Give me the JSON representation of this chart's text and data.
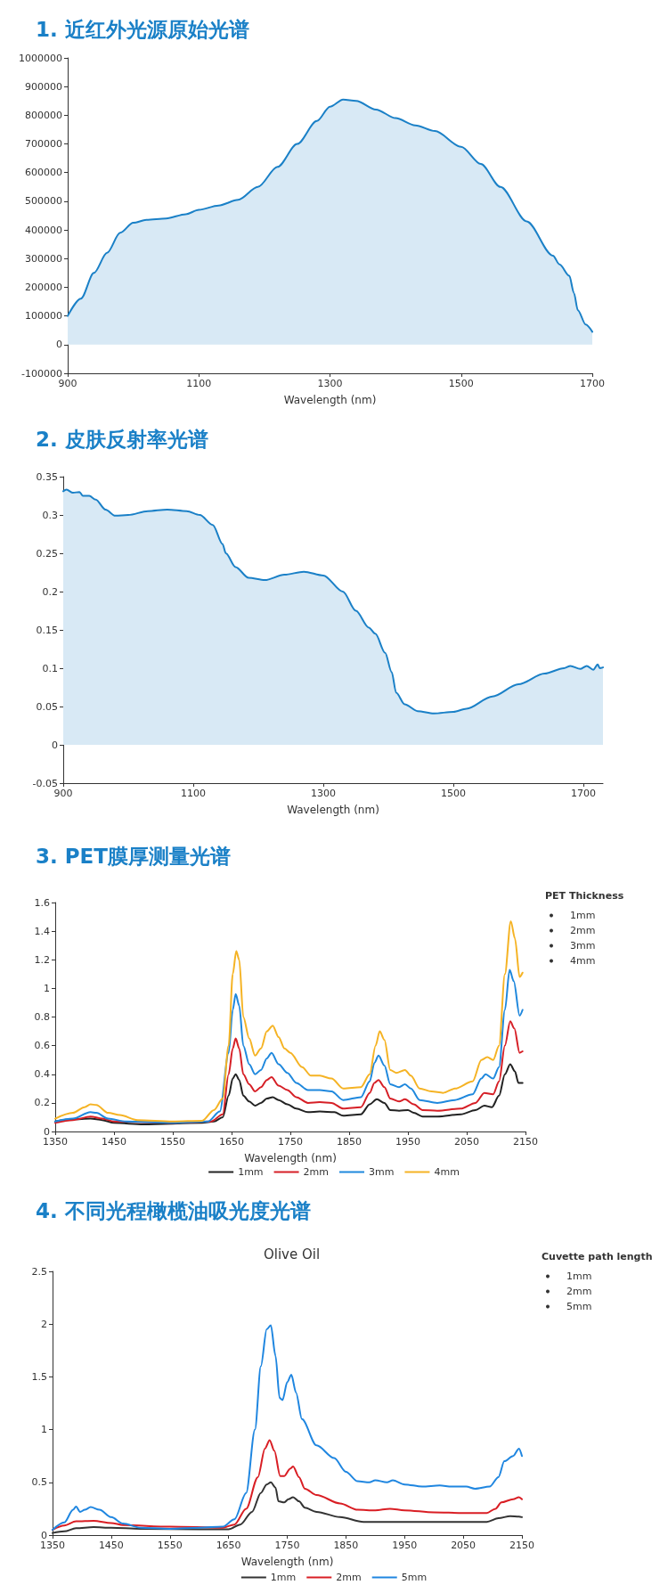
{
  "chart_data": [
    {
      "type": "area",
      "title": "1. 近红外光源原始光谱",
      "xlabel": "Wavelength (nm)",
      "xlim": [
        900,
        1700
      ],
      "xticks": [
        900,
        1100,
        1300,
        1500,
        1700
      ],
      "ylim": [
        -100000,
        1000000
      ],
      "yticks": [
        -100000,
        0,
        100000,
        200000,
        300000,
        400000,
        500000,
        600000,
        700000,
        800000,
        900000,
        1000000
      ],
      "grid": false,
      "legend": false,
      "marker": "none",
      "series": [
        {
          "color": "#1a80c7",
          "x": [
            900,
            920,
            940,
            960,
            980,
            1000,
            1020,
            1050,
            1080,
            1100,
            1130,
            1160,
            1190,
            1220,
            1250,
            1280,
            1300,
            1320,
            1340,
            1370,
            1400,
            1430,
            1460,
            1500,
            1530,
            1560,
            1600,
            1640,
            1650,
            1665,
            1672,
            1678,
            1690,
            1700
          ],
          "values": [
            100000,
            160000,
            250000,
            320000,
            390000,
            425000,
            435000,
            440000,
            455000,
            470000,
            485000,
            505000,
            550000,
            620000,
            700000,
            780000,
            830000,
            855000,
            850000,
            820000,
            790000,
            765000,
            745000,
            690000,
            630000,
            550000,
            430000,
            310000,
            280000,
            240000,
            180000,
            120000,
            70000,
            45000
          ]
        }
      ]
    },
    {
      "type": "area",
      "title": "2. 皮肤反射率光谱",
      "xlabel": "Wavelength (nm)",
      "xlim": [
        900,
        1730
      ],
      "xticks": [
        900,
        1100,
        1300,
        1500,
        1700
      ],
      "ylim": [
        -0.05,
        0.35
      ],
      "yticks": [
        -0.05,
        0,
        0.05,
        0.1,
        0.15,
        0.2,
        0.25,
        0.3,
        0.35
      ],
      "grid": false,
      "legend": false,
      "marker": "none",
      "series": [
        {
          "color": "#1a80c7",
          "x": [
            900,
            905,
            915,
            925,
            930,
            940,
            950,
            965,
            980,
            1000,
            1030,
            1060,
            1090,
            1110,
            1130,
            1145,
            1150,
            1165,
            1185,
            1210,
            1240,
            1270,
            1300,
            1330,
            1350,
            1370,
            1380,
            1395,
            1405,
            1412,
            1425,
            1445,
            1470,
            1500,
            1520,
            1560,
            1600,
            1640,
            1670,
            1680,
            1695,
            1705,
            1715,
            1722,
            1725,
            1730
          ],
          "values": [
            0.331,
            0.333,
            0.329,
            0.33,
            0.325,
            0.325,
            0.32,
            0.307,
            0.299,
            0.3,
            0.305,
            0.307,
            0.305,
            0.3,
            0.287,
            0.262,
            0.25,
            0.232,
            0.218,
            0.215,
            0.222,
            0.226,
            0.221,
            0.2,
            0.175,
            0.153,
            0.145,
            0.12,
            0.095,
            0.068,
            0.053,
            0.044,
            0.041,
            0.043,
            0.047,
            0.063,
            0.079,
            0.093,
            0.1,
            0.103,
            0.099,
            0.103,
            0.098,
            0.105,
            0.1,
            0.101
          ]
        }
      ]
    },
    {
      "type": "line",
      "title": "3. PET膜厚测量光谱",
      "xlabel": "Wavelength (nm)",
      "legend_title": "PET Thickness",
      "xlim": [
        1350,
        2150
      ],
      "xticks": [
        1350,
        1450,
        1550,
        1650,
        1750,
        1850,
        1950,
        2050,
        2150
      ],
      "ylim": [
        0,
        1.6
      ],
      "yticks": [
        0,
        0.2,
        0.4,
        0.6,
        0.8,
        1,
        1.2,
        1.4,
        1.6
      ],
      "grid": false,
      "legend": "bottom",
      "marker": "none",
      "series": [
        {
          "name": "1mm",
          "color": "#222222",
          "x": [
            1350,
            1380,
            1410,
            1430,
            1450,
            1500,
            1600,
            1620,
            1635,
            1645,
            1652,
            1657,
            1663,
            1670,
            1680,
            1690,
            1700,
            1710,
            1720,
            1730,
            1745,
            1760,
            1780,
            1800,
            1825,
            1840,
            1870,
            1885,
            1897,
            1910,
            1920,
            1935,
            1950,
            1960,
            1975,
            2000,
            2040,
            2065,
            2080,
            2093,
            2105,
            2115,
            2124,
            2132,
            2138,
            2145
          ],
          "values": [
            0.07,
            0.085,
            0.09,
            0.08,
            0.06,
            0.05,
            0.06,
            0.07,
            0.1,
            0.25,
            0.37,
            0.4,
            0.36,
            0.25,
            0.21,
            0.18,
            0.2,
            0.23,
            0.24,
            0.22,
            0.19,
            0.16,
            0.135,
            0.14,
            0.135,
            0.11,
            0.12,
            0.19,
            0.225,
            0.2,
            0.15,
            0.145,
            0.15,
            0.13,
            0.105,
            0.105,
            0.12,
            0.15,
            0.18,
            0.17,
            0.25,
            0.4,
            0.47,
            0.42,
            0.34,
            0.34
          ]
        },
        {
          "name": "2mm",
          "color": "#d61f26",
          "x": [
            1350,
            1380,
            1410,
            1430,
            1450,
            1550,
            1615,
            1635,
            1645,
            1652,
            1657,
            1663,
            1670,
            1680,
            1690,
            1700,
            1710,
            1718,
            1730,
            1745,
            1760,
            1780,
            1800,
            1820,
            1840,
            1870,
            1885,
            1893,
            1900,
            1910,
            1920,
            1935,
            1945,
            1960,
            1975,
            2000,
            2040,
            2065,
            2080,
            2095,
            2105,
            2115,
            2124,
            2131,
            2140,
            2145
          ],
          "values": [
            0.06,
            0.08,
            0.105,
            0.09,
            0.07,
            0.06,
            0.07,
            0.12,
            0.4,
            0.58,
            0.65,
            0.58,
            0.4,
            0.33,
            0.28,
            0.31,
            0.36,
            0.38,
            0.32,
            0.29,
            0.24,
            0.2,
            0.205,
            0.2,
            0.16,
            0.17,
            0.27,
            0.34,
            0.36,
            0.31,
            0.23,
            0.21,
            0.225,
            0.19,
            0.15,
            0.145,
            0.16,
            0.2,
            0.27,
            0.26,
            0.35,
            0.6,
            0.77,
            0.72,
            0.55,
            0.56
          ]
        },
        {
          "name": "3mm",
          "color": "#1f88dd",
          "x": [
            1350,
            1380,
            1410,
            1420,
            1440,
            1470,
            1550,
            1610,
            1630,
            1645,
            1652,
            1657,
            1663,
            1670,
            1680,
            1690,
            1700,
            1710,
            1718,
            1730,
            1745,
            1760,
            1780,
            1800,
            1820,
            1840,
            1870,
            1885,
            1893,
            1900,
            1910,
            1920,
            1935,
            1945,
            1955,
            1970,
            2000,
            2030,
            2060,
            2075,
            2082,
            2095,
            2105,
            2115,
            2123,
            2130,
            2140,
            2145
          ],
          "values": [
            0.07,
            0.09,
            0.135,
            0.13,
            0.09,
            0.07,
            0.06,
            0.07,
            0.14,
            0.55,
            0.85,
            0.96,
            0.88,
            0.6,
            0.47,
            0.4,
            0.43,
            0.51,
            0.55,
            0.47,
            0.41,
            0.34,
            0.29,
            0.29,
            0.28,
            0.22,
            0.24,
            0.35,
            0.48,
            0.53,
            0.46,
            0.33,
            0.31,
            0.33,
            0.3,
            0.22,
            0.2,
            0.22,
            0.26,
            0.37,
            0.4,
            0.37,
            0.45,
            0.85,
            1.13,
            1.05,
            0.81,
            0.85
          ]
        },
        {
          "name": "4mm",
          "color": "#f5b324",
          "x": [
            1350,
            1380,
            1400,
            1410,
            1420,
            1440,
            1460,
            1490,
            1550,
            1600,
            1620,
            1635,
            1645,
            1652,
            1658,
            1663,
            1670,
            1680,
            1690,
            1700,
            1710,
            1720,
            1730,
            1740,
            1750,
            1770,
            1785,
            1800,
            1820,
            1840,
            1870,
            1885,
            1895,
            1902,
            1910,
            1920,
            1930,
            1945,
            1955,
            1970,
            1990,
            2010,
            2030,
            2060,
            2075,
            2085,
            2095,
            2105,
            2115,
            2125,
            2132,
            2140,
            2145
          ],
          "values": [
            0.09,
            0.13,
            0.17,
            0.19,
            0.185,
            0.13,
            0.115,
            0.08,
            0.07,
            0.075,
            0.15,
            0.23,
            0.6,
            1.1,
            1.26,
            1.2,
            0.8,
            0.65,
            0.53,
            0.58,
            0.7,
            0.74,
            0.66,
            0.58,
            0.55,
            0.45,
            0.39,
            0.39,
            0.37,
            0.3,
            0.31,
            0.4,
            0.6,
            0.7,
            0.64,
            0.43,
            0.41,
            0.43,
            0.39,
            0.3,
            0.28,
            0.27,
            0.3,
            0.35,
            0.5,
            0.52,
            0.5,
            0.6,
            1.1,
            1.47,
            1.35,
            1.08,
            1.11
          ]
        }
      ]
    },
    {
      "type": "line",
      "title": "4. 不同光程橄榄油吸光度光谱",
      "subtitle": "Olive Oil",
      "xlabel": "Wavelength (nm)",
      "legend_title": "Cuvette path length",
      "xlim": [
        1350,
        2150
      ],
      "xticks": [
        1350,
        1450,
        1550,
        1650,
        1750,
        1850,
        1950,
        2050,
        2150
      ],
      "ylim": [
        0,
        2.5
      ],
      "yticks": [
        0,
        0.5,
        1,
        1.5,
        2,
        2.5
      ],
      "grid": false,
      "legend": "bottom",
      "marker": "none",
      "series": [
        {
          "name": "1mm",
          "color": "#333333",
          "x": [
            1350,
            1370,
            1390,
            1420,
            1450,
            1500,
            1600,
            1650,
            1670,
            1690,
            1705,
            1715,
            1722,
            1730,
            1735,
            1745,
            1752,
            1760,
            1770,
            1780,
            1800,
            1840,
            1880,
            2000,
            2090,
            2110,
            2130,
            2145,
            2150
          ],
          "values": [
            0.02,
            0.035,
            0.065,
            0.075,
            0.07,
            0.06,
            0.055,
            0.055,
            0.1,
            0.22,
            0.4,
            0.48,
            0.5,
            0.45,
            0.32,
            0.31,
            0.34,
            0.36,
            0.32,
            0.26,
            0.22,
            0.17,
            0.125,
            0.125,
            0.125,
            0.16,
            0.18,
            0.175,
            0.17
          ]
        },
        {
          "name": "2mm",
          "color": "#d91e24",
          "x": [
            1350,
            1370,
            1390,
            1420,
            1450,
            1470,
            1550,
            1640,
            1660,
            1680,
            1700,
            1712,
            1720,
            1728,
            1738,
            1745,
            1755,
            1760,
            1770,
            1780,
            1800,
            1840,
            1870,
            1900,
            1925,
            1950,
            2000,
            2050,
            2090,
            2105,
            2115,
            2135,
            2145,
            2150
          ],
          "values": [
            0.05,
            0.09,
            0.13,
            0.135,
            0.115,
            0.095,
            0.08,
            0.07,
            0.1,
            0.25,
            0.55,
            0.82,
            0.9,
            0.8,
            0.56,
            0.56,
            0.63,
            0.65,
            0.55,
            0.44,
            0.38,
            0.3,
            0.24,
            0.235,
            0.25,
            0.235,
            0.215,
            0.21,
            0.21,
            0.25,
            0.31,
            0.34,
            0.36,
            0.34
          ]
        },
        {
          "name": "5mm",
          "color": "#1f86e0",
          "x": [
            1350,
            1370,
            1385,
            1390,
            1397,
            1405,
            1415,
            1430,
            1450,
            1470,
            1500,
            1550,
            1600,
            1640,
            1660,
            1680,
            1695,
            1705,
            1715,
            1722,
            1730,
            1737,
            1742,
            1750,
            1757,
            1765,
            1775,
            1800,
            1830,
            1850,
            1870,
            1890,
            1900,
            1920,
            1930,
            1950,
            1980,
            2010,
            2030,
            2055,
            2070,
            2095,
            2110,
            2120,
            2135,
            2145,
            2150
          ],
          "values": [
            0.05,
            0.12,
            0.24,
            0.27,
            0.22,
            0.24,
            0.265,
            0.24,
            0.17,
            0.11,
            0.07,
            0.06,
            0.07,
            0.08,
            0.15,
            0.4,
            1,
            1.6,
            1.95,
            1.99,
            1.7,
            1.3,
            1.28,
            1.45,
            1.52,
            1.35,
            1.1,
            0.85,
            0.73,
            0.6,
            0.51,
            0.5,
            0.52,
            0.5,
            0.52,
            0.48,
            0.46,
            0.47,
            0.46,
            0.46,
            0.44,
            0.46,
            0.55,
            0.7,
            0.75,
            0.82,
            0.75
          ]
        }
      ]
    }
  ]
}
